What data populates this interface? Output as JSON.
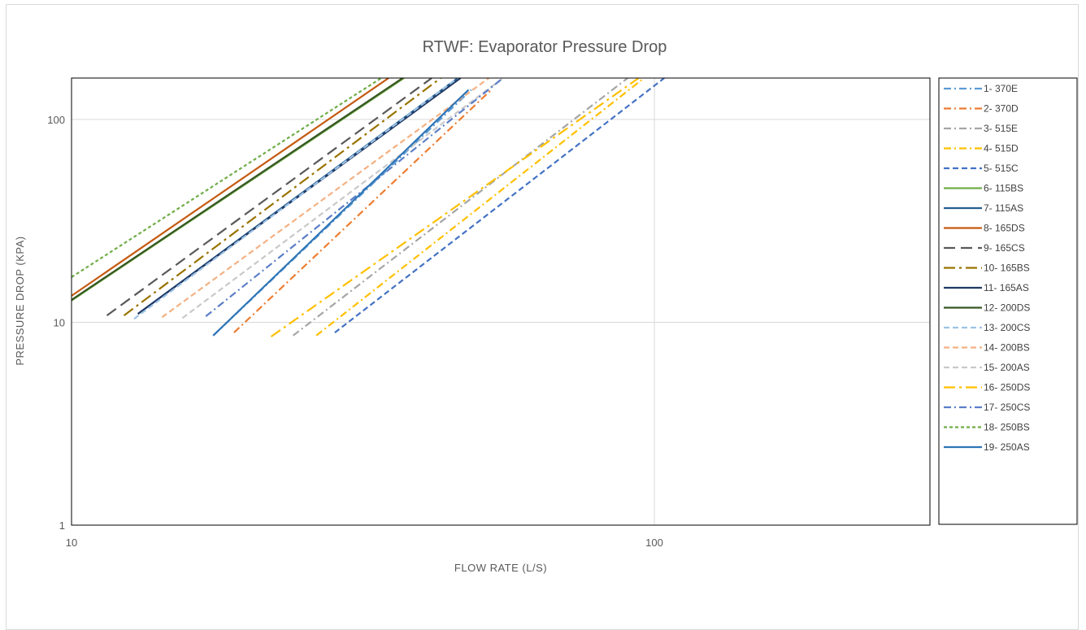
{
  "chart_data": {
    "type": "line",
    "title": "RTWF: Evaporator Pressure Drop",
    "xlabel": "FLOW RATE (L/S)",
    "ylabel": "PRESSURE DROP (KPA)",
    "x_scale": "log",
    "y_scale": "log",
    "xlim": [
      10,
      1000
    ],
    "ylim": [
      1,
      160
    ],
    "x_ticks": [
      10,
      100
    ],
    "x_tick_labels": [
      "10",
      "100"
    ],
    "y_ticks": [
      1,
      10,
      100
    ],
    "y_tick_labels": [
      "1",
      "10",
      "100"
    ],
    "grid": true,
    "legend_position": "right",
    "series": [
      {
        "name": "1- 370E",
        "color": "#5b9bd5",
        "dash": "dashdot",
        "x": [
          17.5,
          48.5
        ],
        "y": [
          8.6,
          140
        ]
      },
      {
        "name": "2- 370D",
        "color": "#ed7d31",
        "dash": "dashdot",
        "x": [
          19.0,
          52.5
        ],
        "y": [
          8.9,
          140
        ]
      },
      {
        "name": "3- 515E",
        "color": "#a5a5a5",
        "dash": "dashdot",
        "x": [
          24.0,
          90.0
        ],
        "y": [
          8.6,
          160
        ]
      },
      {
        "name": "4- 515D",
        "color": "#ffc000",
        "dash": "dashdot",
        "x": [
          26.3,
          96.0
        ],
        "y": [
          8.6,
          160
        ]
      },
      {
        "name": "5- 515C",
        "color": "#4472c4",
        "dash": "dash",
        "x": [
          28.3,
          104.0
        ],
        "y": [
          8.9,
          160
        ]
      },
      {
        "name": "6- 115BS",
        "color": "#70ad47",
        "dash": "solid",
        "x": [
          10.0,
          37.2
        ],
        "y": [
          12.8,
          160
        ]
      },
      {
        "name": "7- 115AS",
        "color": "#255e91",
        "dash": "solid",
        "x": [
          13.0,
          46.0
        ],
        "y": [
          11.0,
          160
        ]
      },
      {
        "name": "8- 165DS",
        "color": "#c55a11",
        "dash": "solid",
        "x": [
          10.0,
          35.0
        ],
        "y": [
          13.5,
          160
        ]
      },
      {
        "name": "9- 165CS",
        "color": "#595959",
        "dash": "longdash",
        "x": [
          11.5,
          41.5
        ],
        "y": [
          10.8,
          160
        ]
      },
      {
        "name": "10- 165BS",
        "color": "#997300",
        "dash": "longdashdot",
        "x": [
          12.3,
          43.0
        ],
        "y": [
          10.8,
          160
        ]
      },
      {
        "name": "11- 165AS",
        "color": "#203864",
        "dash": "solid",
        "x": [
          13.0,
          46.5
        ],
        "y": [
          11.0,
          160
        ]
      },
      {
        "name": "12- 200DS",
        "color": "#375623",
        "dash": "solid",
        "x": [
          10.0,
          37.0
        ],
        "y": [
          12.9,
          160
        ]
      },
      {
        "name": "13- 200CS",
        "color": "#9dc3e6",
        "dash": "dash",
        "x": [
          12.8,
          46.0
        ],
        "y": [
          10.4,
          160
        ]
      },
      {
        "name": "14- 200BS",
        "color": "#f4b183",
        "dash": "dash",
        "x": [
          14.3,
          52.0
        ],
        "y": [
          10.6,
          160
        ]
      },
      {
        "name": "15- 200AS",
        "color": "#c9c9c9",
        "dash": "dash",
        "x": [
          15.5,
          55.0
        ],
        "y": [
          10.5,
          160
        ]
      },
      {
        "name": "16- 250DS",
        "color": "#ffc000",
        "dash": "longdashdot",
        "x": [
          22.0,
          94.0
        ],
        "y": [
          8.5,
          160
        ]
      },
      {
        "name": "17- 250CS",
        "color": "#5b7ec7",
        "dash": "dashdot",
        "x": [
          17.0,
          55.0
        ],
        "y": [
          10.7,
          160
        ]
      },
      {
        "name": "18- 250BS",
        "color": "#70ad47",
        "dash": "shortdash",
        "x": [
          10.0,
          34.0
        ],
        "y": [
          16.7,
          160
        ]
      },
      {
        "name": "19- 250AS",
        "color": "#2e75b6",
        "dash": "solid",
        "x": [
          17.5,
          48.0
        ],
        "y": [
          8.6,
          140
        ]
      }
    ]
  }
}
